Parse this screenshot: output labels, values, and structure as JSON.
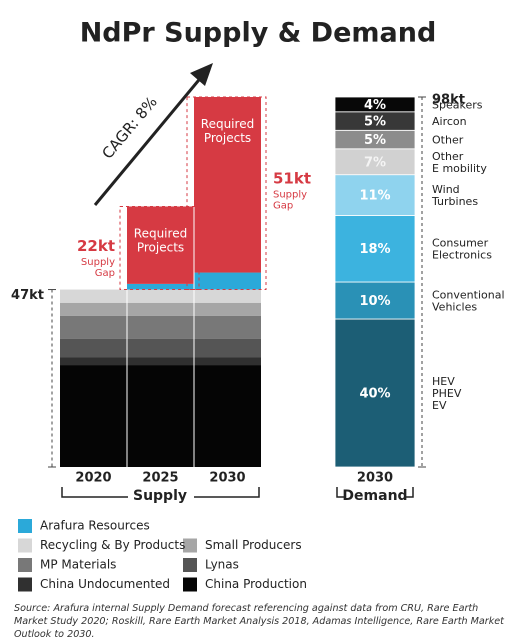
{
  "chart_data": [
    {
      "type": "stacked-bar",
      "title": "NdPr Supply & Demand",
      "ylim": [
        0,
        98
      ],
      "categories": [
        "2020",
        "2025",
        "2030"
      ],
      "axis_label": "Supply",
      "cagr": "CAGR: 8%",
      "series": [
        {
          "name": "China Production",
          "color": "#050505",
          "values": [
            27,
            27,
            27
          ]
        },
        {
          "name": "China Undocumented",
          "color": "#303030",
          "values": [
            2,
            2,
            2
          ]
        },
        {
          "name": "Lynas",
          "color": "#555555",
          "values": [
            5,
            5,
            5
          ]
        },
        {
          "name": "MP Materials",
          "color": "#787878",
          "values": [
            6,
            6,
            6
          ]
        },
        {
          "name": "Small Producers",
          "color": "#a6a6a6",
          "values": [
            3.5,
            3.5,
            3.5
          ]
        },
        {
          "name": "Recycling & By Products",
          "color": "#d7d7d7",
          "values": [
            3.5,
            3.5,
            3.5
          ]
        },
        {
          "name": "Arafura Resources",
          "color": "#2ba9d9",
          "values": [
            null,
            1.5,
            4.5
          ]
        }
      ],
      "required": {
        "name": "Required Projects",
        "color": "#d63a43",
        "values": [
          null,
          20.5,
          46.5
        ]
      },
      "markers": [
        {
          "value": 47,
          "label": "47kt"
        }
      ],
      "gaps": [
        {
          "value": 22,
          "label": "22kt",
          "note": "Supply Gap"
        },
        {
          "value": 51,
          "label": "51kt",
          "note": "Supply Gap"
        }
      ]
    },
    {
      "type": "stacked-bar",
      "categories": [
        "2030"
      ],
      "axis_label": "Demand",
      "total": {
        "value": 98,
        "label": "98kt"
      },
      "series": [
        {
          "name": "HEV\nPHEV\nEV",
          "color": "#1c5e75",
          "values": [
            40
          ],
          "value_labels": [
            "40%"
          ]
        },
        {
          "name": "Conventional\nVehicles",
          "color": "#2a91b6",
          "values": [
            10
          ],
          "value_labels": [
            "10%"
          ]
        },
        {
          "name": "Consumer\nElectronics",
          "color": "#3cb3df",
          "values": [
            18
          ],
          "value_labels": [
            "18%"
          ]
        },
        {
          "name": "Wind\nTurbines",
          "color": "#8fd3ee",
          "values": [
            11
          ],
          "value_labels": [
            "11%"
          ]
        },
        {
          "name": "Other\nE mobility",
          "color": "#d1d1d1",
          "values": [
            7
          ],
          "value_labels": [
            "7%"
          ]
        },
        {
          "name": "Other",
          "color": "#8c8c8c",
          "values": [
            5
          ],
          "value_labels": [
            "5%"
          ]
        },
        {
          "name": "Aircon",
          "color": "#383838",
          "values": [
            5
          ],
          "value_labels": [
            "5%"
          ]
        },
        {
          "name": "Speakers",
          "color": "#080808",
          "values": [
            4
          ],
          "value_labels": [
            "4%"
          ]
        }
      ]
    }
  ],
  "source": "Source: Arafura internal Supply Demand forecast referencing against data from CRU, Rare Earth Market Study 2020; Roskill, Rare Earth Market Analysis 2018, Adamas Intelligence, Rare Earth Market Outlook to 2030."
}
